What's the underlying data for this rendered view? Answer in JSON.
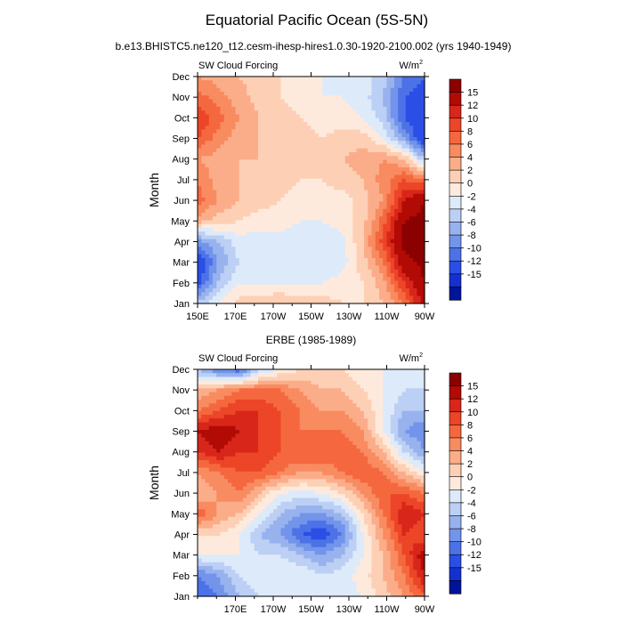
{
  "title": "Equatorial Pacific Ocean (5S-5N)",
  "subtitle": "b.e13.BHISTC5.ne120_t12.cesm-ihesp-hires1.0.30-1920-2100.002 (yrs 1940-1949)",
  "colorbar": {
    "levels": [
      "15",
      "12",
      "10",
      "8",
      "6",
      "4",
      "2",
      "0",
      "-2",
      "-4",
      "-6",
      "-8",
      "-10",
      "-12",
      "-15"
    ],
    "colors": [
      "#8b0000",
      "#b20a05",
      "#d8261a",
      "#ec4527",
      "#f5683f",
      "#f98b60",
      "#fbad8a",
      "#fdd0b5",
      "#feeadc",
      "#ddeafa",
      "#bccff4",
      "#98b2ee",
      "#7294ea",
      "#4d72e7",
      "#2b4ee6",
      "#1430cf",
      "#00149a"
    ]
  },
  "chart_data": [
    {
      "type": "heatmap",
      "panel_title": "",
      "variable": "SW Cloud Forcing",
      "units_base": "W/m",
      "units_exp": "2",
      "xlabel": "",
      "ylabel": "Month",
      "x_ticks": [
        "150E",
        "170E",
        "170W",
        "150W",
        "130W",
        "110W",
        "90W"
      ],
      "y_ticks": [
        "Jan",
        "Feb",
        "Mar",
        "Apr",
        "May",
        "Jun",
        "Jul",
        "Aug",
        "Sep",
        "Oct",
        "Nov",
        "Dec"
      ],
      "x_range_deg": [
        150,
        270
      ],
      "values": [
        [
          -5,
          -2,
          1,
          1,
          2,
          1,
          1,
          0,
          0,
          2,
          6,
          13
        ],
        [
          -13,
          -6,
          -2,
          -2,
          -2,
          -2,
          -2,
          -1,
          0,
          3,
          10,
          15
        ],
        [
          -15,
          -8,
          -4,
          -4,
          -4,
          -4,
          -4,
          -3,
          1,
          6,
          14,
          16
        ],
        [
          -9,
          -6,
          -3,
          -3,
          -3,
          -4,
          -4,
          -3,
          2,
          9,
          16,
          16
        ],
        [
          3,
          1,
          0,
          -1,
          -1,
          -2,
          -2,
          -1,
          1,
          7,
          15,
          16
        ],
        [
          7,
          4,
          2,
          1,
          0,
          -1,
          -1,
          -1,
          1,
          4,
          12,
          15
        ],
        [
          6,
          3,
          2,
          1,
          1,
          0,
          0,
          1,
          2,
          5,
          8,
          6
        ],
        [
          4,
          3,
          2,
          2,
          1,
          1,
          1,
          2,
          3,
          4,
          2,
          -6
        ],
        [
          8,
          5,
          3,
          2,
          1,
          1,
          0,
          1,
          1,
          -2,
          -8,
          -15
        ],
        [
          10,
          7,
          4,
          2,
          1,
          0,
          -1,
          -1,
          -2,
          -5,
          -12,
          -15
        ],
        [
          7,
          5,
          3,
          1,
          0,
          -1,
          -2,
          -2,
          -3,
          -6,
          -12,
          -14
        ],
        [
          4,
          3,
          2,
          1,
          0,
          -1,
          -2,
          -3,
          -3,
          -5,
          -10,
          -12
        ]
      ]
    },
    {
      "type": "heatmap",
      "panel_title": "ERBE (1985-1989)",
      "variable": "SW Cloud Forcing",
      "units_base": "W/m",
      "units_exp": "2",
      "xlabel": "",
      "ylabel": "Month",
      "x_ticks": [
        "170E",
        "170W",
        "150W",
        "130W",
        "110W",
        "90W"
      ],
      "y_ticks": [
        "Jan",
        "Feb",
        "Mar",
        "Apr",
        "May",
        "Jun",
        "Jul",
        "Aug",
        "Sep",
        "Oct",
        "Nov",
        "Dec"
      ],
      "x_range_deg": [
        150,
        270
      ],
      "values": [
        [
          -12,
          -10,
          -6,
          -4,
          -4,
          -4,
          -4,
          -3,
          -2,
          1,
          4,
          8
        ],
        [
          -10,
          -8,
          -4,
          -2,
          -2,
          -2,
          -4,
          -3,
          -1,
          2,
          6,
          12
        ],
        [
          -2,
          -2,
          -2,
          -4,
          -4,
          -6,
          -8,
          -6,
          -2,
          2,
          8,
          14
        ],
        [
          0,
          0,
          -2,
          -6,
          -8,
          -12,
          -14,
          -10,
          -2,
          4,
          10,
          8
        ],
        [
          8,
          4,
          2,
          -2,
          -6,
          -8,
          -8,
          -6,
          0,
          6,
          12,
          10
        ],
        [
          2,
          4,
          6,
          2,
          -2,
          -3,
          -2,
          0,
          4,
          8,
          8,
          6
        ],
        [
          4,
          6,
          8,
          8,
          6,
          4,
          4,
          6,
          8,
          6,
          2,
          -2
        ],
        [
          10,
          12,
          10,
          10,
          8,
          8,
          8,
          8,
          6,
          2,
          -4,
          -8
        ],
        [
          12,
          14,
          12,
          10,
          8,
          6,
          6,
          6,
          4,
          -2,
          -8,
          -10
        ],
        [
          6,
          8,
          10,
          10,
          8,
          6,
          4,
          4,
          2,
          -2,
          -6,
          -6
        ],
        [
          2,
          4,
          6,
          6,
          6,
          4,
          2,
          2,
          0,
          -2,
          -4,
          -4
        ],
        [
          -6,
          -10,
          -12,
          -4,
          -2,
          0,
          0,
          0,
          -2,
          -2,
          -2,
          -2
        ]
      ]
    }
  ]
}
